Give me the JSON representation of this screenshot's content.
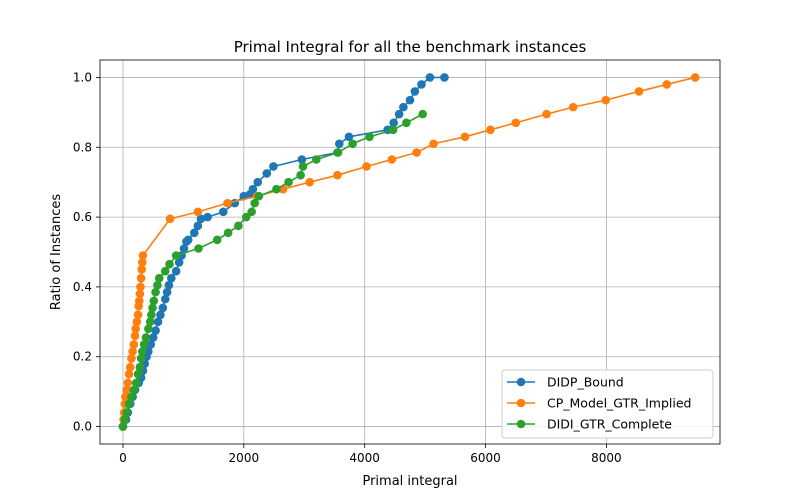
{
  "chart_data": {
    "type": "line",
    "title": "Primal Integral for all the benchmark instances",
    "xlabel": "Primal integral",
    "ylabel": "Ratio of Instances",
    "xlim": [
      -380,
      9880
    ],
    "ylim": [
      -0.05,
      1.05
    ],
    "xticks": [
      0,
      2000,
      4000,
      6000,
      8000
    ],
    "xtick_labels": [
      "0",
      "2000",
      "4000",
      "6000",
      "8000"
    ],
    "yticks": [
      0.0,
      0.2,
      0.4,
      0.6,
      0.8,
      1.0
    ],
    "ytick_labels": [
      "0.0",
      "0.2",
      "0.4",
      "0.6",
      "0.8",
      "1.0"
    ],
    "grid": true,
    "legend_position": "lower-right",
    "series": [
      {
        "name": "DIDP_Bound",
        "color": "#1f77b4",
        "marker": "circle",
        "x": [
          0,
          50,
          80,
          120,
          160,
          200,
          260,
          300,
          330,
          360,
          390,
          420,
          460,
          500,
          540,
          580,
          620,
          660,
          700,
          730,
          760,
          800,
          880,
          930,
          970,
          1010,
          1050,
          1080,
          1180,
          1240,
          1290,
          1400,
          1660,
          1850,
          2000,
          2100,
          2150,
          2230,
          2380,
          2490,
          2960,
          3550,
          3580,
          3740,
          4380,
          4480,
          4570,
          4640,
          4750,
          4830,
          4940,
          5080,
          5320
        ],
        "y": [
          0.0,
          0.02,
          0.04,
          0.065,
          0.085,
          0.105,
          0.125,
          0.14,
          0.16,
          0.18,
          0.2,
          0.215,
          0.235,
          0.255,
          0.275,
          0.3,
          0.32,
          0.34,
          0.365,
          0.385,
          0.405,
          0.425,
          0.445,
          0.47,
          0.49,
          0.51,
          0.53,
          0.535,
          0.555,
          0.575,
          0.595,
          0.6,
          0.615,
          0.64,
          0.66,
          0.665,
          0.68,
          0.7,
          0.725,
          0.745,
          0.765,
          0.785,
          0.81,
          0.83,
          0.85,
          0.87,
          0.895,
          0.915,
          0.935,
          0.96,
          0.98,
          1.0,
          1.0
        ]
      },
      {
        "name": "CP_Model_GTR_Implied",
        "color": "#ff7f0e",
        "marker": "circle",
        "x": [
          0,
          10,
          20,
          30,
          40,
          60,
          80,
          100,
          120,
          140,
          160,
          180,
          200,
          210,
          230,
          250,
          260,
          270,
          280,
          290,
          300,
          310,
          320,
          330,
          780,
          1240,
          1730,
          2220,
          2650,
          3090,
          3550,
          4030,
          4450,
          4860,
          5140,
          5660,
          6080,
          6500,
          7010,
          7450,
          7990,
          8540,
          9000,
          9470
        ],
        "y": [
          0.0,
          0.02,
          0.04,
          0.065,
          0.085,
          0.105,
          0.125,
          0.15,
          0.17,
          0.195,
          0.215,
          0.235,
          0.26,
          0.28,
          0.3,
          0.32,
          0.345,
          0.36,
          0.38,
          0.4,
          0.425,
          0.45,
          0.47,
          0.49,
          0.595,
          0.615,
          0.64,
          0.66,
          0.68,
          0.7,
          0.72,
          0.745,
          0.765,
          0.785,
          0.81,
          0.83,
          0.85,
          0.87,
          0.895,
          0.915,
          0.935,
          0.96,
          0.98,
          1.0
        ]
      },
      {
        "name": "DIDI_GTR_Complete",
        "color": "#2ca02c",
        "marker": "circle",
        "x": [
          0,
          30,
          60,
          100,
          140,
          180,
          220,
          250,
          280,
          300,
          320,
          350,
          380,
          420,
          450,
          470,
          490,
          510,
          540,
          570,
          600,
          700,
          770,
          880,
          1250,
          1560,
          1740,
          1910,
          2040,
          2130,
          2180,
          2250,
          2540,
          2740,
          2940,
          2980,
          3200,
          3560,
          3800,
          4080,
          4470,
          4690,
          4960
        ],
        "y": [
          0.0,
          0.02,
          0.04,
          0.065,
          0.085,
          0.105,
          0.125,
          0.15,
          0.17,
          0.195,
          0.215,
          0.235,
          0.255,
          0.28,
          0.3,
          0.32,
          0.34,
          0.36,
          0.385,
          0.405,
          0.425,
          0.445,
          0.465,
          0.49,
          0.51,
          0.535,
          0.555,
          0.575,
          0.6,
          0.615,
          0.64,
          0.66,
          0.68,
          0.7,
          0.72,
          0.745,
          0.765,
          0.785,
          0.81,
          0.83,
          0.85,
          0.87,
          0.895
        ]
      }
    ]
  }
}
